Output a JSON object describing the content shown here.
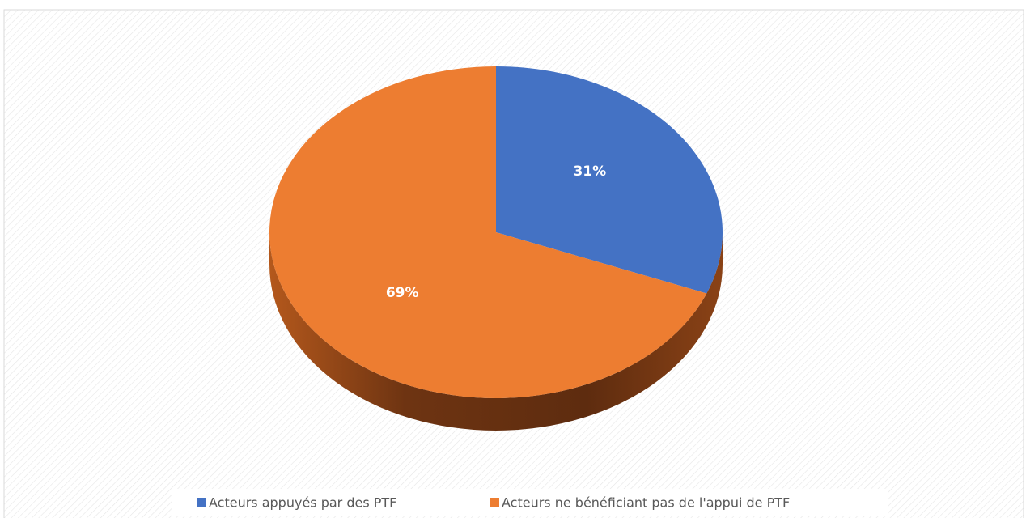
{
  "chart_data": {
    "type": "pie",
    "categories": [
      "Acteurs appuyés par des PTF",
      "Acteurs ne bénéficiant pas de l'appui de PTF"
    ],
    "values": [
      31,
      69
    ],
    "value_labels": [
      "31%",
      "69%"
    ],
    "colors": [
      "#4472c4",
      "#ed7d31"
    ],
    "legend": "bottom"
  }
}
